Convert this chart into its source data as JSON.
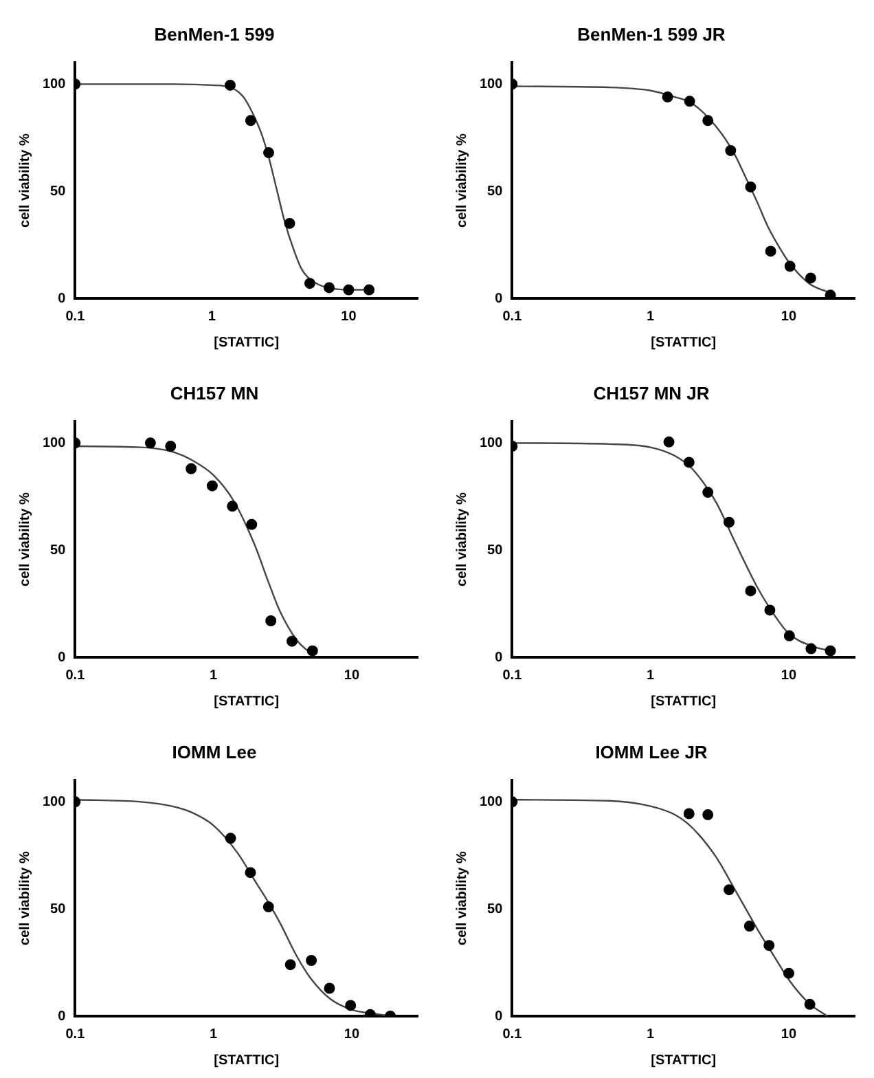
{
  "chart_data": [
    {
      "type": "scatter",
      "title": "BenMen-1 599",
      "xlabel": "[STATTIC]",
      "ylabel": "cell viability %",
      "log": "x",
      "xlim": [
        0.1,
        32
      ],
      "xticks": [
        0.1,
        1,
        10
      ],
      "ylim": [
        0,
        110
      ],
      "yticks": [
        0,
        50,
        100
      ],
      "series": [
        {
          "marker": "circle",
          "color": "#000000",
          "x": [
            0.1,
            1.36,
            1.92,
            2.6,
            3.7,
            5.2,
            7.2,
            10,
            14.1
          ],
          "values": [
            100,
            99.5,
            83,
            68,
            35,
            7,
            5,
            4,
            4
          ]
        },
        {
          "type": "line",
          "marker": "none",
          "color": "#444444",
          "x": [
            0.1,
            0.5,
            1,
            1.36,
            1.7,
            2,
            2.3,
            2.6,
            3,
            3.4,
            4,
            4.5,
            5,
            6,
            7,
            10,
            14.6
          ],
          "values": [
            100,
            100,
            99.5,
            98.5,
            94,
            86,
            77,
            66,
            50,
            36,
            22,
            14,
            10,
            6.5,
            5,
            4,
            4
          ]
        }
      ]
    },
    {
      "type": "scatter",
      "title": "BenMen-1 599 JR",
      "xlabel": "[STATTIC]",
      "ylabel": "cell viability %",
      "log": "x",
      "xlim": [
        0.1,
        30
      ],
      "xticks": [
        0.1,
        1,
        10
      ],
      "ylim": [
        0,
        110
      ],
      "yticks": [
        0,
        50,
        100
      ],
      "series": [
        {
          "marker": "circle",
          "color": "#000000",
          "x": [
            0.1,
            1.33,
            1.92,
            2.6,
            3.8,
            5.3,
            7.4,
            10.2,
            14.4,
            20
          ],
          "values": [
            100,
            94,
            92,
            83,
            69,
            52,
            22,
            15,
            9.5,
            1.5
          ]
        },
        {
          "type": "line",
          "marker": "none",
          "color": "#444444",
          "x": [
            0.1,
            0.5,
            1,
            1.5,
            2,
            3,
            4,
            5,
            6,
            7,
            8,
            10,
            14,
            20
          ],
          "values": [
            99,
            98.5,
            97,
            94,
            91,
            80,
            68,
            55,
            44,
            34,
            27,
            17,
            7,
            2.5
          ]
        }
      ]
    },
    {
      "type": "scatter",
      "title": "CH157 MN",
      "xlabel": "[STATTIC]",
      "ylabel": "cell viability %",
      "log": "x",
      "xlim": [
        0.1,
        30
      ],
      "xticks": [
        0.1,
        1,
        10
      ],
      "ylim": [
        0,
        110
      ],
      "yticks": [
        0,
        50,
        100
      ],
      "series": [
        {
          "marker": "circle",
          "color": "#000000",
          "x": [
            0.1,
            0.35,
            0.49,
            0.69,
            0.98,
            1.37,
            1.89,
            2.6,
            3.7,
            5.2
          ],
          "values": [
            100,
            100,
            98.5,
            88,
            80,
            70.5,
            62,
            17,
            7.5,
            3
          ]
        },
        {
          "type": "line",
          "marker": "none",
          "color": "#444444",
          "x": [
            0.1,
            0.3,
            0.5,
            0.7,
            1,
            1.4,
            2,
            2.5,
            3,
            4,
            5
          ],
          "values": [
            98.5,
            98,
            96,
            92,
            85,
            73,
            52,
            35,
            22,
            8,
            2
          ]
        }
      ]
    },
    {
      "type": "scatter",
      "title": "CH157 MN JR",
      "xlabel": "[STATTIC]",
      "ylabel": "cell viability %",
      "log": "x",
      "xlim": [
        0.1,
        30
      ],
      "xticks": [
        0.1,
        1,
        10
      ],
      "ylim": [
        0,
        110
      ],
      "yticks": [
        0,
        50,
        100
      ],
      "series": [
        {
          "marker": "circle",
          "color": "#000000",
          "x": [
            0.1,
            1.36,
            1.9,
            2.6,
            3.7,
            5.3,
            7.3,
            10.1,
            14.5,
            20
          ],
          "values": [
            98.5,
            100.5,
            91,
            77,
            63,
            31,
            22,
            10,
            4,
            3
          ]
        },
        {
          "type": "line",
          "marker": "none",
          "color": "#444444",
          "x": [
            0.1,
            0.5,
            1,
            1.5,
            2,
            3,
            4,
            5,
            6,
            8,
            10,
            15,
            20
          ],
          "values": [
            100,
            99.5,
            98,
            94,
            88,
            72,
            55,
            42,
            32,
            19,
            11,
            5,
            3
          ]
        }
      ]
    },
    {
      "type": "scatter",
      "title": "IOMM Lee",
      "xlabel": "[STATTIC]",
      "ylabel": "cell viability %",
      "log": "x",
      "xlim": [
        0.1,
        30
      ],
      "xticks": [
        0.1,
        1,
        10
      ],
      "ylim": [
        0,
        110
      ],
      "yticks": [
        0,
        50,
        100
      ],
      "series": [
        {
          "marker": "circle",
          "color": "#000000",
          "x": [
            0.1,
            1.33,
            1.85,
            2.5,
            3.6,
            5.1,
            6.9,
            9.8,
            13.6,
            19
          ],
          "values": [
            100,
            83,
            67,
            51,
            24,
            26,
            13,
            5,
            0.7,
            0
          ]
        },
        {
          "type": "line",
          "marker": "none",
          "color": "#444444",
          "x": [
            0.1,
            0.3,
            0.5,
            0.7,
            1,
            1.5,
            2,
            2.5,
            3,
            4,
            5,
            7,
            10,
            15,
            20
          ],
          "values": [
            101,
            100,
            98,
            95,
            89,
            76,
            63,
            53,
            44,
            28,
            18,
            8,
            3,
            1,
            0
          ]
        }
      ]
    },
    {
      "type": "scatter",
      "title": "IOMM Lee JR",
      "xlabel": "[STATTIC]",
      "ylabel": "cell viability %",
      "log": "x",
      "xlim": [
        0.1,
        30
      ],
      "xticks": [
        0.1,
        1,
        10
      ],
      "ylim": [
        0,
        110
      ],
      "yticks": [
        0,
        50,
        100
      ],
      "series": [
        {
          "marker": "circle",
          "color": "#000000",
          "x": [
            0.1,
            1.9,
            2.6,
            3.7,
            5.2,
            7.2,
            10,
            14.2
          ],
          "values": [
            100,
            94.5,
            94,
            59,
            42,
            33,
            20,
            5.5
          ]
        },
        {
          "type": "line",
          "marker": "none",
          "color": "#444444",
          "x": [
            0.1,
            0.5,
            1,
            1.5,
            2,
            3,
            4,
            5,
            6,
            8,
            10,
            14,
            19
          ],
          "values": [
            101,
            100.5,
            98,
            94,
            88,
            74,
            60,
            49,
            40,
            27,
            17,
            6,
            0
          ]
        }
      ]
    }
  ]
}
